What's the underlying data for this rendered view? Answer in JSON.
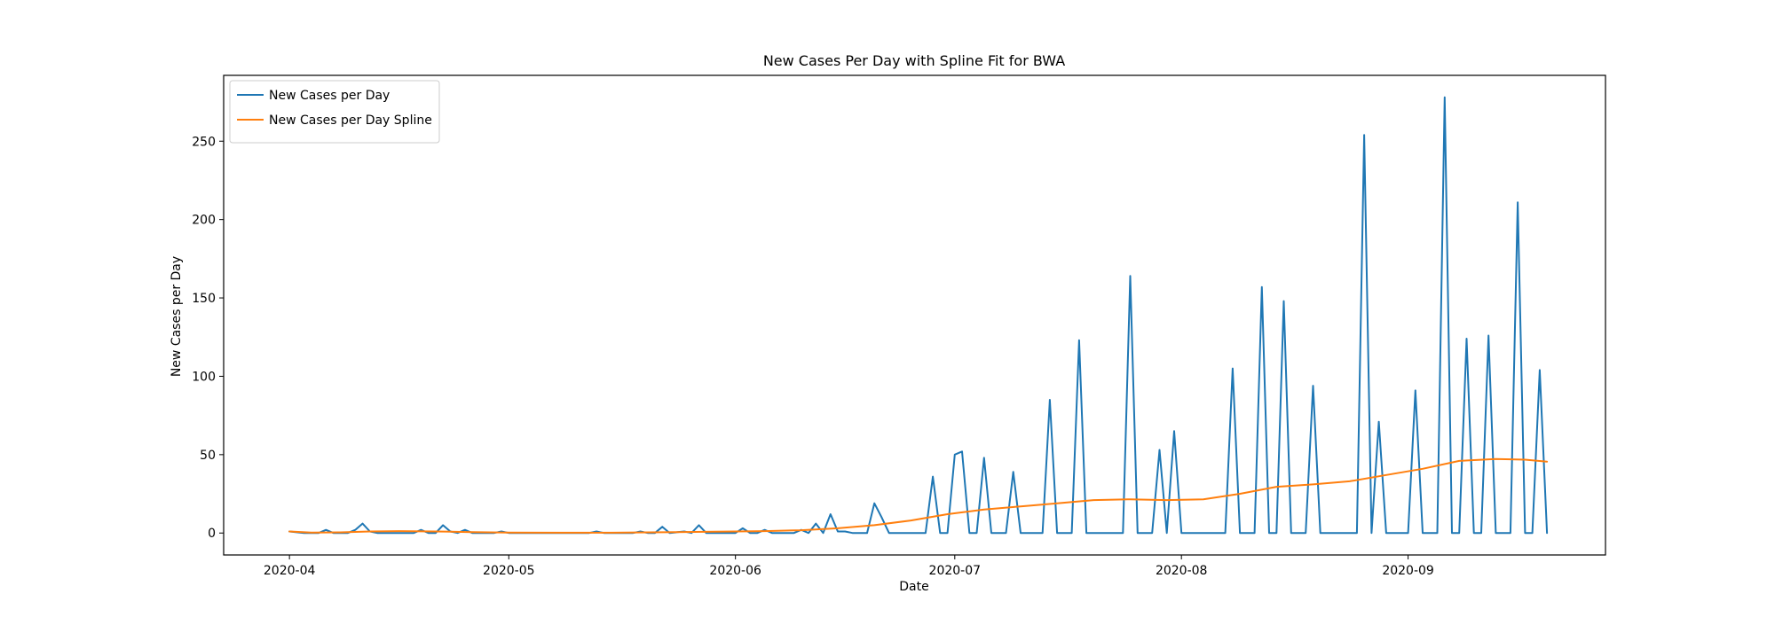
{
  "chart_data": {
    "type": "line",
    "title": "New Cases Per Day with Spline Fit for BWA",
    "xlabel": "Date",
    "ylabel": "New Cases per Day",
    "x_range": [
      "2020-03-23",
      "2020-09-28"
    ],
    "ylim": [
      -14,
      292
    ],
    "x_ticks": [
      "2020-04",
      "2020-05",
      "2020-06",
      "2020-07",
      "2020-08",
      "2020-09"
    ],
    "y_ticks": [
      0,
      50,
      100,
      150,
      200,
      250
    ],
    "grid": false,
    "legend_position": "top-left",
    "series": [
      {
        "name": "New Cases per Day",
        "color": "#1f77b4",
        "points": [
          [
            "2020-04-01",
            1
          ],
          [
            "2020-04-03",
            0
          ],
          [
            "2020-04-05",
            0
          ],
          [
            "2020-04-06",
            2
          ],
          [
            "2020-04-07",
            0
          ],
          [
            "2020-04-09",
            0
          ],
          [
            "2020-04-10",
            2
          ],
          [
            "2020-04-11",
            6
          ],
          [
            "2020-04-12",
            1
          ],
          [
            "2020-04-13",
            0
          ],
          [
            "2020-04-18",
            0
          ],
          [
            "2020-04-19",
            2
          ],
          [
            "2020-04-20",
            0
          ],
          [
            "2020-04-21",
            0
          ],
          [
            "2020-04-22",
            5
          ],
          [
            "2020-04-23",
            1
          ],
          [
            "2020-04-24",
            0
          ],
          [
            "2020-04-25",
            2
          ],
          [
            "2020-04-26",
            0
          ],
          [
            "2020-04-29",
            0
          ],
          [
            "2020-04-30",
            1
          ],
          [
            "2020-05-01",
            0
          ],
          [
            "2020-05-12",
            0
          ],
          [
            "2020-05-13",
            1
          ],
          [
            "2020-05-14",
            0
          ],
          [
            "2020-05-18",
            0
          ],
          [
            "2020-05-19",
            1
          ],
          [
            "2020-05-20",
            0
          ],
          [
            "2020-05-21",
            0
          ],
          [
            "2020-05-22",
            4
          ],
          [
            "2020-05-23",
            0
          ],
          [
            "2020-05-25",
            1
          ],
          [
            "2020-05-26",
            0
          ],
          [
            "2020-05-27",
            5
          ],
          [
            "2020-05-28",
            0
          ],
          [
            "2020-06-01",
            0
          ],
          [
            "2020-06-02",
            3
          ],
          [
            "2020-06-03",
            0
          ],
          [
            "2020-06-04",
            0
          ],
          [
            "2020-06-05",
            2
          ],
          [
            "2020-06-06",
            0
          ],
          [
            "2020-06-08",
            0
          ],
          [
            "2020-06-09",
            0
          ],
          [
            "2020-06-10",
            2
          ],
          [
            "2020-06-11",
            0
          ],
          [
            "2020-06-12",
            6
          ],
          [
            "2020-06-13",
            0
          ],
          [
            "2020-06-14",
            12
          ],
          [
            "2020-06-15",
            1
          ],
          [
            "2020-06-16",
            1
          ],
          [
            "2020-06-17",
            0
          ],
          [
            "2020-06-18",
            0
          ],
          [
            "2020-06-19",
            0
          ],
          [
            "2020-06-20",
            19
          ],
          [
            "2020-06-21",
            10
          ],
          [
            "2020-06-22",
            0
          ],
          [
            "2020-06-23",
            0
          ],
          [
            "2020-06-24",
            0
          ],
          [
            "2020-06-25",
            0
          ],
          [
            "2020-06-26",
            0
          ],
          [
            "2020-06-27",
            0
          ],
          [
            "2020-06-28",
            36
          ],
          [
            "2020-06-29",
            0
          ],
          [
            "2020-06-30",
            0
          ],
          [
            "2020-07-01",
            50
          ],
          [
            "2020-07-02",
            52
          ],
          [
            "2020-07-03",
            0
          ],
          [
            "2020-07-04",
            0
          ],
          [
            "2020-07-05",
            48
          ],
          [
            "2020-07-06",
            0
          ],
          [
            "2020-07-07",
            0
          ],
          [
            "2020-07-08",
            0
          ],
          [
            "2020-07-09",
            39
          ],
          [
            "2020-07-10",
            0
          ],
          [
            "2020-07-11",
            0
          ],
          [
            "2020-07-12",
            0
          ],
          [
            "2020-07-13",
            0
          ],
          [
            "2020-07-14",
            85
          ],
          [
            "2020-07-15",
            0
          ],
          [
            "2020-07-16",
            0
          ],
          [
            "2020-07-17",
            0
          ],
          [
            "2020-07-18",
            123
          ],
          [
            "2020-07-19",
            0
          ],
          [
            "2020-07-20",
            0
          ],
          [
            "2020-07-21",
            0
          ],
          [
            "2020-07-22",
            0
          ],
          [
            "2020-07-23",
            0
          ],
          [
            "2020-07-24",
            0
          ],
          [
            "2020-07-25",
            164
          ],
          [
            "2020-07-26",
            0
          ],
          [
            "2020-07-27",
            0
          ],
          [
            "2020-07-28",
            0
          ],
          [
            "2020-07-29",
            53
          ],
          [
            "2020-07-30",
            0
          ],
          [
            "2020-07-31",
            65
          ],
          [
            "2020-08-01",
            0
          ],
          [
            "2020-08-02",
            0
          ],
          [
            "2020-08-03",
            0
          ],
          [
            "2020-08-04",
            0
          ],
          [
            "2020-08-05",
            0
          ],
          [
            "2020-08-06",
            0
          ],
          [
            "2020-08-07",
            0
          ],
          [
            "2020-08-08",
            105
          ],
          [
            "2020-08-09",
            0
          ],
          [
            "2020-08-10",
            0
          ],
          [
            "2020-08-11",
            0
          ],
          [
            "2020-08-12",
            157
          ],
          [
            "2020-08-13",
            0
          ],
          [
            "2020-08-14",
            0
          ],
          [
            "2020-08-15",
            148
          ],
          [
            "2020-08-16",
            0
          ],
          [
            "2020-08-17",
            0
          ],
          [
            "2020-08-18",
            0
          ],
          [
            "2020-08-19",
            94
          ],
          [
            "2020-08-20",
            0
          ],
          [
            "2020-08-21",
            0
          ],
          [
            "2020-08-22",
            0
          ],
          [
            "2020-08-23",
            0
          ],
          [
            "2020-08-24",
            0
          ],
          [
            "2020-08-25",
            0
          ],
          [
            "2020-08-26",
            254
          ],
          [
            "2020-08-27",
            0
          ],
          [
            "2020-08-28",
            71
          ],
          [
            "2020-08-29",
            0
          ],
          [
            "2020-08-30",
            0
          ],
          [
            "2020-08-31",
            0
          ],
          [
            "2020-09-01",
            0
          ],
          [
            "2020-09-02",
            91
          ],
          [
            "2020-09-03",
            0
          ],
          [
            "2020-09-04",
            0
          ],
          [
            "2020-09-05",
            0
          ],
          [
            "2020-09-06",
            278
          ],
          [
            "2020-09-07",
            0
          ],
          [
            "2020-09-08",
            0
          ],
          [
            "2020-09-09",
            124
          ],
          [
            "2020-09-10",
            0
          ],
          [
            "2020-09-11",
            0
          ],
          [
            "2020-09-12",
            126
          ],
          [
            "2020-09-13",
            0
          ],
          [
            "2020-09-14",
            0
          ],
          [
            "2020-09-15",
            0
          ],
          [
            "2020-09-16",
            211
          ],
          [
            "2020-09-17",
            0
          ],
          [
            "2020-09-18",
            0
          ],
          [
            "2020-09-19",
            104
          ],
          [
            "2020-09-20",
            0
          ]
        ]
      },
      {
        "name": "New Cases per Day Spline",
        "color": "#ff7f0e",
        "points": [
          [
            "2020-04-01",
            1.0
          ],
          [
            "2020-04-04",
            0.3
          ],
          [
            "2020-04-08",
            0.4
          ],
          [
            "2020-04-12",
            1.0
          ],
          [
            "2020-04-16",
            1.2
          ],
          [
            "2020-04-21",
            1.0
          ],
          [
            "2020-04-26",
            0.6
          ],
          [
            "2020-05-01",
            0.3
          ],
          [
            "2020-05-08",
            0.2
          ],
          [
            "2020-05-15",
            0.2
          ],
          [
            "2020-05-22",
            0.5
          ],
          [
            "2020-05-29",
            0.8
          ],
          [
            "2020-06-05",
            1.2
          ],
          [
            "2020-06-10",
            1.8
          ],
          [
            "2020-06-15",
            3.0
          ],
          [
            "2020-06-20",
            5.0
          ],
          [
            "2020-06-25",
            8.0
          ],
          [
            "2020-06-30",
            12.0
          ],
          [
            "2020-07-05",
            15.0
          ],
          [
            "2020-07-10",
            17.0
          ],
          [
            "2020-07-15",
            19.0
          ],
          [
            "2020-07-20",
            21.0
          ],
          [
            "2020-07-25",
            21.5
          ],
          [
            "2020-07-30",
            21.0
          ],
          [
            "2020-08-04",
            21.5
          ],
          [
            "2020-08-09",
            25.0
          ],
          [
            "2020-08-14",
            29.5
          ],
          [
            "2020-08-19",
            31.0
          ],
          [
            "2020-08-24",
            33.0
          ],
          [
            "2020-08-29",
            37.0
          ],
          [
            "2020-09-03",
            41.0
          ],
          [
            "2020-09-08",
            46.0
          ],
          [
            "2020-09-13",
            47.2
          ],
          [
            "2020-09-17",
            46.8
          ],
          [
            "2020-09-20",
            45.5
          ]
        ]
      }
    ]
  }
}
